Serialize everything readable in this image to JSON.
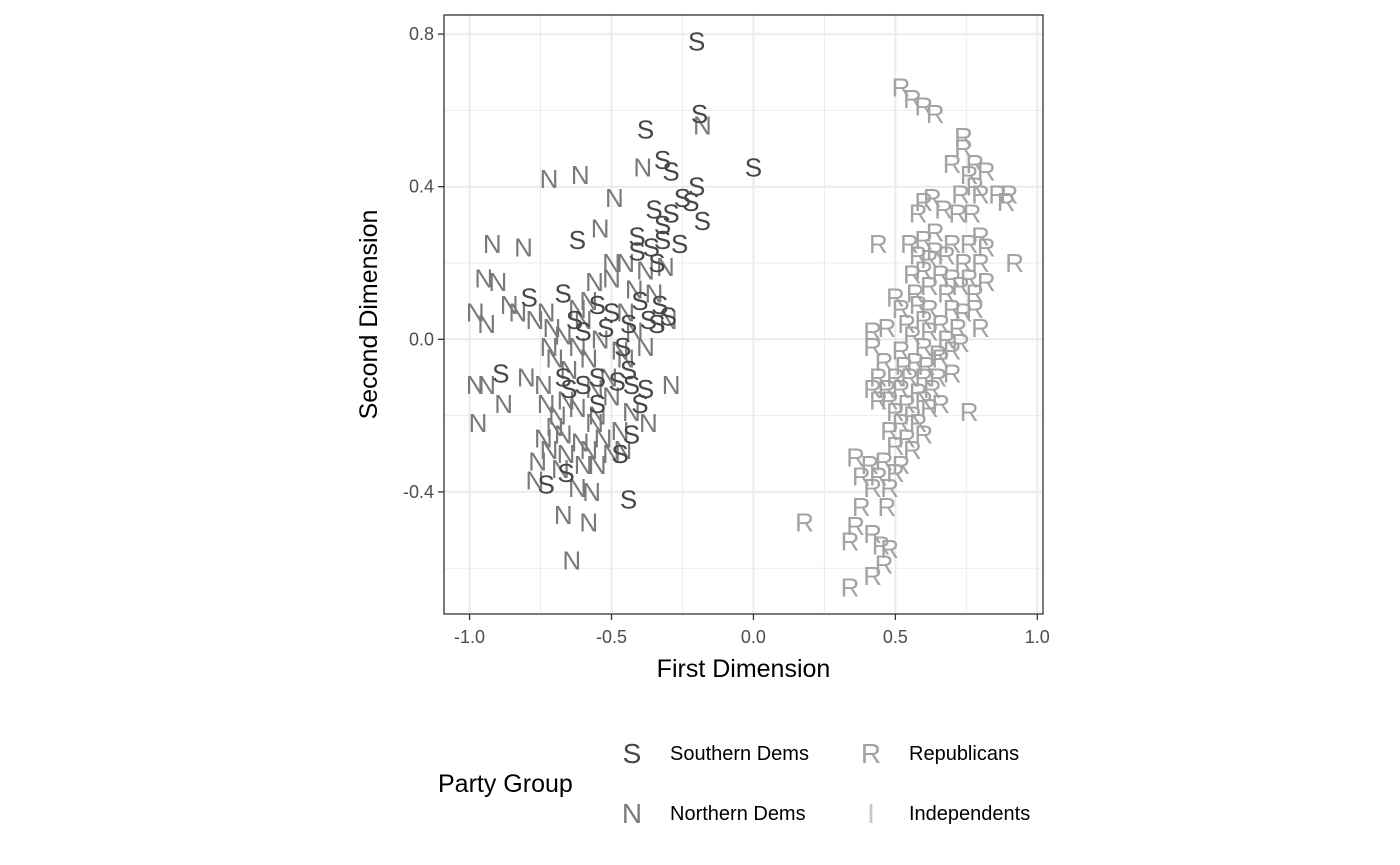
{
  "chart_data": {
    "type": "scatter",
    "xlabel": "First Dimension",
    "ylabel": "Second Dimension",
    "xlim": [
      -1.09,
      1.02
    ],
    "ylim": [
      -0.72,
      0.85
    ],
    "x_ticks": [
      -1.0,
      -0.5,
      0.0,
      0.5,
      1.0
    ],
    "x_tick_labels": [
      "-1.0",
      "-0.5",
      "0.0",
      "0.5",
      "1.0"
    ],
    "y_ticks": [
      -0.4,
      0.0,
      0.4,
      0.8
    ],
    "y_tick_labels": [
      "-0.4",
      "0.0",
      "0.4",
      "0.8"
    ],
    "grid": true,
    "legend": {
      "title": "Party Group",
      "placement": "bottom",
      "entries": [
        {
          "symbol": "S",
          "label": "Southern Dems",
          "color": "#474747"
        },
        {
          "symbol": "N",
          "label": "Northern Dems",
          "color": "#7a7a7a"
        },
        {
          "symbol": "R",
          "label": "Republicans",
          "color": "#a3a3a3"
        },
        {
          "symbol": "I",
          "label": "Independents",
          "color": "#c8c8c8"
        }
      ]
    },
    "series": [
      {
        "name": "Southern Dems",
        "symbol": "S",
        "color": "#474747",
        "points": [
          [
            -0.2,
            0.78
          ],
          [
            -0.19,
            0.59
          ],
          [
            0.0,
            0.45
          ],
          [
            -0.38,
            0.55
          ],
          [
            -0.32,
            0.47
          ],
          [
            -0.29,
            0.44
          ],
          [
            -0.2,
            0.4
          ],
          [
            -0.25,
            0.37
          ],
          [
            -0.22,
            0.36
          ],
          [
            -0.18,
            0.31
          ],
          [
            -0.35,
            0.34
          ],
          [
            -0.32,
            0.3
          ],
          [
            -0.29,
            0.33
          ],
          [
            -0.41,
            0.27
          ],
          [
            -0.36,
            0.24
          ],
          [
            -0.32,
            0.26
          ],
          [
            -0.26,
            0.25
          ],
          [
            -0.62,
            0.26
          ],
          [
            -0.41,
            0.23
          ],
          [
            -0.34,
            0.2
          ],
          [
            -0.67,
            0.12
          ],
          [
            -0.79,
            0.11
          ],
          [
            -0.55,
            0.09
          ],
          [
            -0.5,
            0.07
          ],
          [
            -0.4,
            0.1
          ],
          [
            -0.33,
            0.09
          ],
          [
            -0.3,
            0.06
          ],
          [
            -0.63,
            0.05
          ],
          [
            -0.6,
            0.02
          ],
          [
            -0.52,
            0.03
          ],
          [
            -0.44,
            0.04
          ],
          [
            -0.37,
            0.05
          ],
          [
            -0.46,
            -0.02
          ],
          [
            -0.34,
            0.04
          ],
          [
            -0.89,
            -0.09
          ],
          [
            -0.67,
            -0.1
          ],
          [
            -0.55,
            -0.1
          ],
          [
            -0.44,
            -0.08
          ],
          [
            -0.65,
            -0.13
          ],
          [
            -0.6,
            -0.12
          ],
          [
            -0.48,
            -0.11
          ],
          [
            -0.43,
            -0.12
          ],
          [
            -0.38,
            -0.13
          ],
          [
            -0.4,
            -0.17
          ],
          [
            -0.55,
            -0.17
          ],
          [
            -0.43,
            -0.25
          ],
          [
            -0.47,
            -0.3
          ],
          [
            -0.66,
            -0.35
          ],
          [
            -0.73,
            -0.38
          ],
          [
            -0.44,
            -0.42
          ]
        ]
      },
      {
        "name": "Northern Dems",
        "symbol": "N",
        "color": "#7a7a7a",
        "points": [
          [
            -0.18,
            0.56
          ],
          [
            -0.39,
            0.45
          ],
          [
            -0.61,
            0.43
          ],
          [
            -0.72,
            0.42
          ],
          [
            -0.49,
            0.37
          ],
          [
            -0.54,
            0.29
          ],
          [
            -0.92,
            0.25
          ],
          [
            -0.81,
            0.24
          ],
          [
            -0.95,
            0.16
          ],
          [
            -0.9,
            0.15
          ],
          [
            -0.5,
            0.2
          ],
          [
            -0.45,
            0.2
          ],
          [
            -0.38,
            0.18
          ],
          [
            -0.31,
            0.19
          ],
          [
            -0.56,
            0.15
          ],
          [
            -0.5,
            0.16
          ],
          [
            -0.42,
            0.13
          ],
          [
            -0.35,
            0.12
          ],
          [
            -0.86,
            0.09
          ],
          [
            -0.83,
            0.07
          ],
          [
            -0.73,
            0.07
          ],
          [
            -0.98,
            0.07
          ],
          [
            -0.58,
            0.1
          ],
          [
            -0.62,
            0.08
          ],
          [
            -0.45,
            0.07
          ],
          [
            -0.77,
            0.05
          ],
          [
            -0.71,
            0.03
          ],
          [
            -0.94,
            0.04
          ],
          [
            -0.6,
            0.05
          ],
          [
            -0.42,
            0.02
          ],
          [
            -0.3,
            0.05
          ],
          [
            -0.67,
            0.01
          ],
          [
            -0.54,
            0.0
          ],
          [
            -0.72,
            -0.02
          ],
          [
            -0.62,
            -0.02
          ],
          [
            -0.47,
            -0.03
          ],
          [
            -0.38,
            -0.02
          ],
          [
            -0.7,
            -0.05
          ],
          [
            -0.58,
            -0.05
          ],
          [
            -0.45,
            -0.05
          ],
          [
            -0.65,
            -0.08
          ],
          [
            -0.8,
            -0.1
          ],
          [
            -0.74,
            -0.12
          ],
          [
            -0.98,
            -0.12
          ],
          [
            -0.94,
            -0.12
          ],
          [
            -0.51,
            -0.1
          ],
          [
            -0.56,
            -0.13
          ],
          [
            -0.66,
            -0.16
          ],
          [
            -0.5,
            -0.15
          ],
          [
            -0.29,
            -0.12
          ],
          [
            -0.88,
            -0.17
          ],
          [
            -0.73,
            -0.17
          ],
          [
            -0.69,
            -0.2
          ],
          [
            -0.62,
            -0.18
          ],
          [
            -0.55,
            -0.2
          ],
          [
            -0.43,
            -0.19
          ],
          [
            -0.97,
            -0.22
          ],
          [
            -0.7,
            -0.23
          ],
          [
            -0.56,
            -0.22
          ],
          [
            -0.37,
            -0.22
          ],
          [
            -0.47,
            -0.24
          ],
          [
            -0.74,
            -0.26
          ],
          [
            -0.67,
            -0.25
          ],
          [
            -0.61,
            -0.27
          ],
          [
            -0.53,
            -0.26
          ],
          [
            -0.72,
            -0.29
          ],
          [
            -0.66,
            -0.3
          ],
          [
            -0.58,
            -0.29
          ],
          [
            -0.5,
            -0.3
          ],
          [
            -0.46,
            -0.29
          ],
          [
            -0.76,
            -0.32
          ],
          [
            -0.68,
            -0.34
          ],
          [
            -0.6,
            -0.33
          ],
          [
            -0.55,
            -0.33
          ],
          [
            -0.77,
            -0.37
          ],
          [
            -0.62,
            -0.39
          ],
          [
            -0.57,
            -0.4
          ],
          [
            -0.67,
            -0.46
          ],
          [
            -0.58,
            -0.48
          ],
          [
            -0.64,
            -0.58
          ]
        ]
      },
      {
        "name": "Republicans",
        "symbol": "R",
        "color": "#a3a3a3",
        "points": [
          [
            0.52,
            0.66
          ],
          [
            0.56,
            0.63
          ],
          [
            0.6,
            0.61
          ],
          [
            0.64,
            0.59
          ],
          [
            0.74,
            0.53
          ],
          [
            0.74,
            0.5
          ],
          [
            0.7,
            0.46
          ],
          [
            0.78,
            0.46
          ],
          [
            0.82,
            0.44
          ],
          [
            0.76,
            0.43
          ],
          [
            0.78,
            0.4
          ],
          [
            0.73,
            0.38
          ],
          [
            0.8,
            0.38
          ],
          [
            0.86,
            0.38
          ],
          [
            0.9,
            0.38
          ],
          [
            0.63,
            0.37
          ],
          [
            0.6,
            0.36
          ],
          [
            0.67,
            0.34
          ],
          [
            0.89,
            0.36
          ],
          [
            0.58,
            0.33
          ],
          [
            0.72,
            0.33
          ],
          [
            0.77,
            0.33
          ],
          [
            0.64,
            0.28
          ],
          [
            0.8,
            0.27
          ],
          [
            0.44,
            0.25
          ],
          [
            0.55,
            0.25
          ],
          [
            0.6,
            0.26
          ],
          [
            0.7,
            0.25
          ],
          [
            0.76,
            0.25
          ],
          [
            0.82,
            0.24
          ],
          [
            0.58,
            0.22
          ],
          [
            0.64,
            0.23
          ],
          [
            0.68,
            0.22
          ],
          [
            0.74,
            0.2
          ],
          [
            0.8,
            0.2
          ],
          [
            0.62,
            0.21
          ],
          [
            0.92,
            0.2
          ],
          [
            0.56,
            0.17
          ],
          [
            0.6,
            0.18
          ],
          [
            0.66,
            0.17
          ],
          [
            0.7,
            0.16
          ],
          [
            0.76,
            0.16
          ],
          [
            0.82,
            0.15
          ],
          [
            0.62,
            0.14
          ],
          [
            0.68,
            0.12
          ],
          [
            0.73,
            0.14
          ],
          [
            0.78,
            0.12
          ],
          [
            0.57,
            0.12
          ],
          [
            0.5,
            0.11
          ],
          [
            0.52,
            0.08
          ],
          [
            0.58,
            0.09
          ],
          [
            0.62,
            0.08
          ],
          [
            0.7,
            0.08
          ],
          [
            0.74,
            0.07
          ],
          [
            0.78,
            0.08
          ],
          [
            0.54,
            0.04
          ],
          [
            0.6,
            0.05
          ],
          [
            0.66,
            0.04
          ],
          [
            0.72,
            0.03
          ],
          [
            0.8,
            0.03
          ],
          [
            0.42,
            0.02
          ],
          [
            0.47,
            0.03
          ],
          [
            0.56,
            0.01
          ],
          [
            0.62,
            0.02
          ],
          [
            0.68,
            0.0
          ],
          [
            0.73,
            -0.01
          ],
          [
            0.42,
            -0.02
          ],
          [
            0.52,
            -0.03
          ],
          [
            0.6,
            -0.02
          ],
          [
            0.65,
            -0.04
          ],
          [
            0.7,
            -0.03
          ],
          [
            0.46,
            -0.06
          ],
          [
            0.53,
            -0.07
          ],
          [
            0.57,
            -0.06
          ],
          [
            0.61,
            -0.07
          ],
          [
            0.66,
            -0.05
          ],
          [
            0.7,
            -0.09
          ],
          [
            0.44,
            -0.1
          ],
          [
            0.5,
            -0.1
          ],
          [
            0.55,
            -0.1
          ],
          [
            0.6,
            -0.1
          ],
          [
            0.65,
            -0.1
          ],
          [
            0.42,
            -0.13
          ],
          [
            0.47,
            -0.13
          ],
          [
            0.52,
            -0.13
          ],
          [
            0.58,
            -0.14
          ],
          [
            0.63,
            -0.13
          ],
          [
            0.44,
            -0.16
          ],
          [
            0.48,
            -0.16
          ],
          [
            0.54,
            -0.17
          ],
          [
            0.6,
            -0.16
          ],
          [
            0.66,
            -0.17
          ],
          [
            0.5,
            -0.19
          ],
          [
            0.56,
            -0.2
          ],
          [
            0.62,
            -0.18
          ],
          [
            0.76,
            -0.19
          ],
          [
            0.52,
            -0.22
          ],
          [
            0.58,
            -0.22
          ],
          [
            0.48,
            -0.24
          ],
          [
            0.54,
            -0.26
          ],
          [
            0.6,
            -0.25
          ],
          [
            0.5,
            -0.28
          ],
          [
            0.56,
            -0.29
          ],
          [
            0.36,
            -0.31
          ],
          [
            0.41,
            -0.33
          ],
          [
            0.46,
            -0.32
          ],
          [
            0.52,
            -0.33
          ],
          [
            0.38,
            -0.36
          ],
          [
            0.44,
            -0.36
          ],
          [
            0.5,
            -0.35
          ],
          [
            0.42,
            -0.39
          ],
          [
            0.48,
            -0.39
          ],
          [
            0.38,
            -0.44
          ],
          [
            0.47,
            -0.44
          ],
          [
            0.18,
            -0.48
          ],
          [
            0.36,
            -0.49
          ],
          [
            0.42,
            -0.51
          ],
          [
            0.34,
            -0.53
          ],
          [
            0.45,
            -0.54
          ],
          [
            0.48,
            -0.55
          ],
          [
            0.46,
            -0.59
          ],
          [
            0.42,
            -0.62
          ],
          [
            0.34,
            -0.65
          ]
        ]
      },
      {
        "name": "Independents",
        "symbol": "I",
        "color": "#c8c8c8",
        "points": []
      }
    ]
  }
}
